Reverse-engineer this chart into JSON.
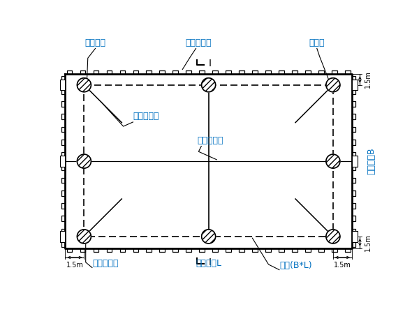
{
  "bg_color": "#ffffff",
  "line_color": "#000000",
  "blue_color": "#0070C0",
  "label_top_left": "特制角桩",
  "label_top_center": "钢板桩围堰",
  "label_top_right": "钢导框",
  "label_inner_left": "钢导框斜联",
  "label_inner_center": "钢导框横联",
  "label_bottom_center": "承台长度L",
  "label_bottom_left": "定位钢管桩",
  "label_bottom_right": "承台(B*L)",
  "label_right": "承台宽度B",
  "dim_1": "1.5m",
  "section_I": "I"
}
